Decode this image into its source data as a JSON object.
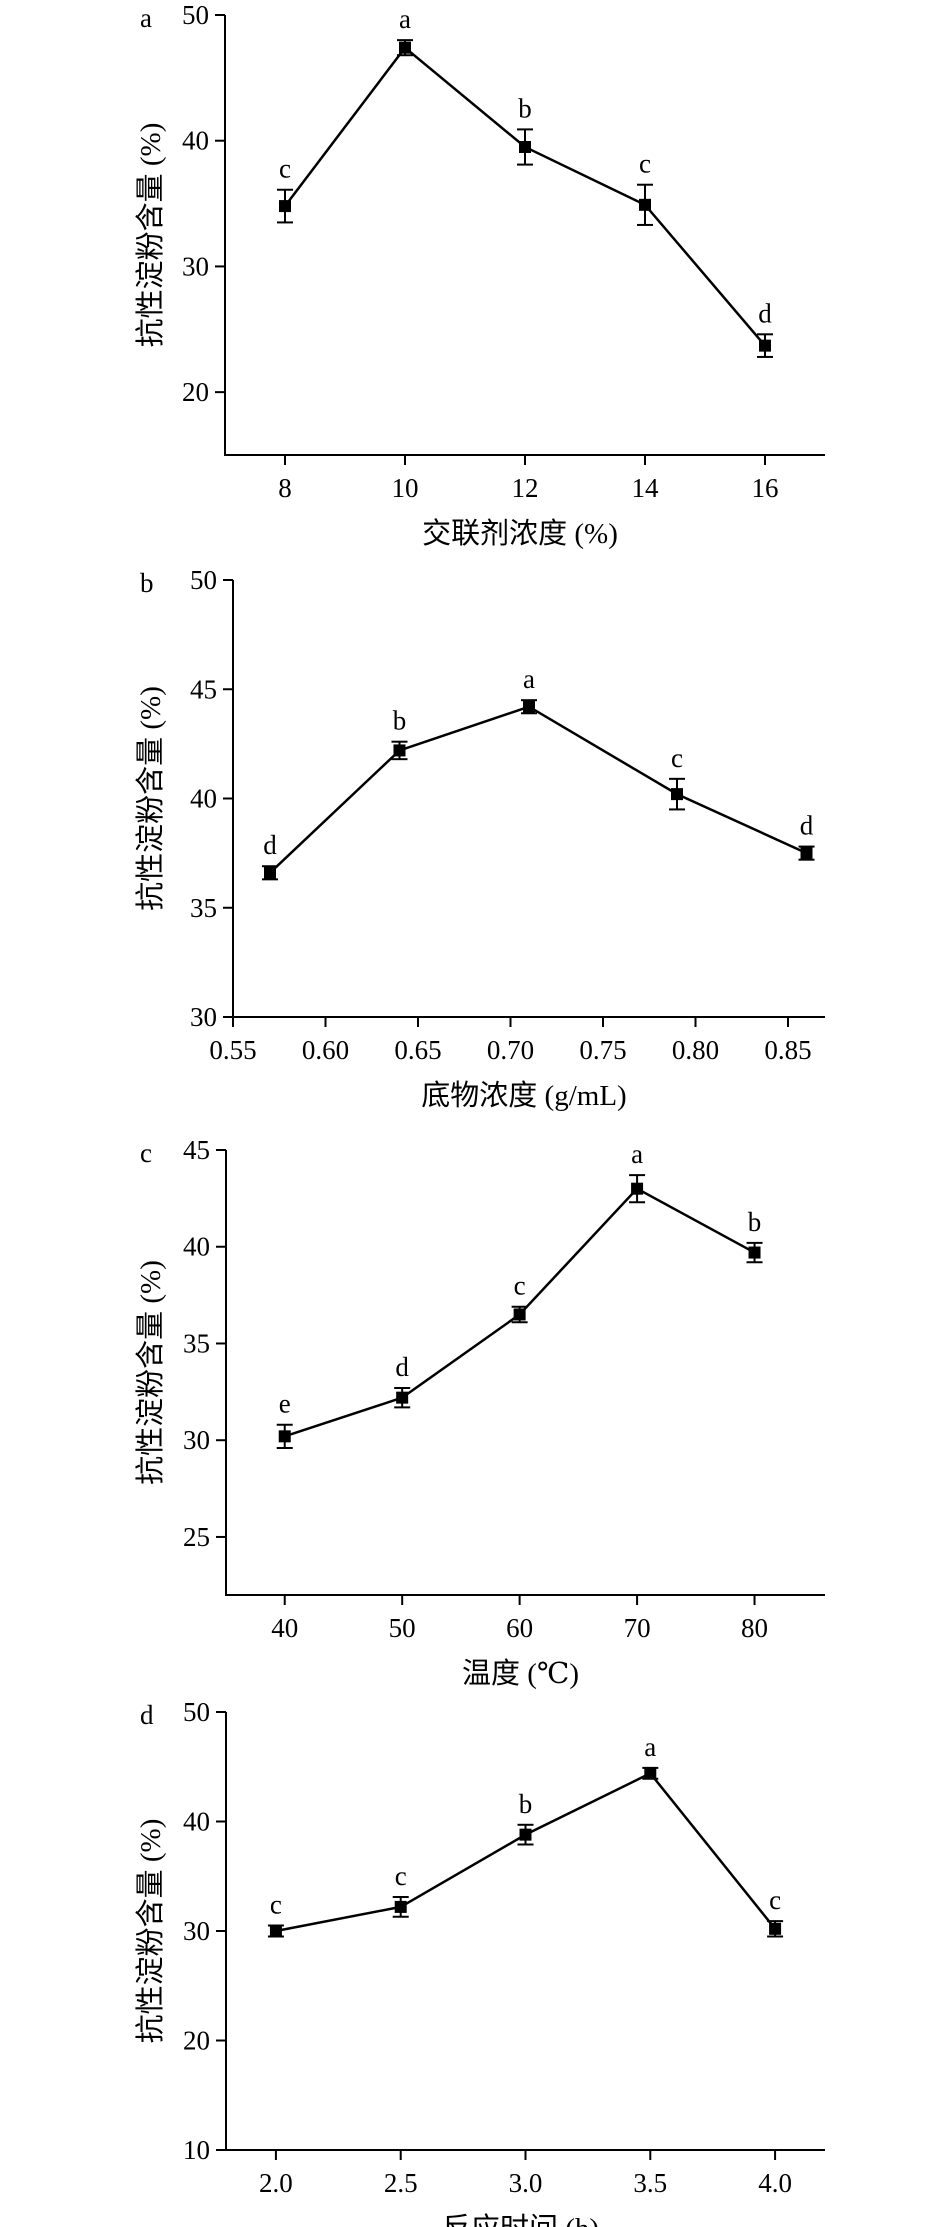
{
  "chart_data": [
    {
      "type": "line",
      "panel_label": "a",
      "xlabel": "交联剂浓度 (%)",
      "ylabel": "抗性淀粉含量 (%)",
      "x": [
        8,
        10,
        12,
        14,
        16
      ],
      "x_ticks": [
        "8",
        "10",
        "12",
        "14",
        "16"
      ],
      "xlim": [
        7.0,
        17.0
      ],
      "y_ticks": [
        "20",
        "30",
        "40",
        "50"
      ],
      "ylim": [
        15,
        50
      ],
      "series": [
        {
          "values": [
            34.8,
            47.4,
            39.5,
            34.9,
            23.7
          ],
          "errors": [
            1.3,
            0.6,
            1.4,
            1.6,
            0.9
          ],
          "letters": [
            "c",
            "a",
            "b",
            "c",
            "d"
          ]
        }
      ],
      "grid": false
    },
    {
      "type": "line",
      "panel_label": "b",
      "xlabel": "底物浓度 (g/mL)",
      "ylabel": "抗性淀粉含量 (%)",
      "x": [
        0.57,
        0.64,
        0.71,
        0.79,
        0.86
      ],
      "x_ticks": [
        "0.55",
        "0.60",
        "0.65",
        "0.70",
        "0.75",
        "0.80",
        "0.85"
      ],
      "xlim": [
        0.55,
        0.87
      ],
      "y_ticks": [
        "30",
        "35",
        "40",
        "45",
        "50"
      ],
      "ylim": [
        30,
        50
      ],
      "series": [
        {
          "values": [
            36.6,
            42.2,
            44.2,
            40.2,
            37.5
          ],
          "errors": [
            0.3,
            0.4,
            0.3,
            0.7,
            0.3
          ],
          "letters": [
            "d",
            "b",
            "a",
            "c",
            "d"
          ]
        }
      ],
      "grid": false
    },
    {
      "type": "line",
      "panel_label": "c",
      "xlabel": "温度 (℃)",
      "ylabel": "抗性淀粉含量 (%)",
      "x": [
        40,
        50,
        60,
        70,
        80
      ],
      "x_ticks": [
        "40",
        "50",
        "60",
        "70",
        "80"
      ],
      "xlim": [
        35,
        86
      ],
      "y_ticks": [
        "25",
        "30",
        "35",
        "40",
        "45"
      ],
      "ylim": [
        22,
        45
      ],
      "series": [
        {
          "values": [
            30.2,
            32.2,
            36.5,
            43.0,
            39.7
          ],
          "errors": [
            0.6,
            0.5,
            0.4,
            0.7,
            0.5
          ],
          "letters": [
            "e",
            "d",
            "c",
            "a",
            "b"
          ]
        }
      ],
      "grid": false
    },
    {
      "type": "line",
      "panel_label": "d",
      "xlabel": "反应时间 (h)",
      "ylabel": "抗性淀粉含量 (%)",
      "x": [
        2.0,
        2.5,
        3.0,
        3.5,
        4.0
      ],
      "x_ticks": [
        "2.0",
        "2.5",
        "3.0",
        "3.5",
        "4.0"
      ],
      "xlim": [
        1.8,
        4.2
      ],
      "y_ticks": [
        "10",
        "20",
        "30",
        "40",
        "50"
      ],
      "ylim": [
        10,
        50
      ],
      "series": [
        {
          "values": [
            30.0,
            32.2,
            38.8,
            44.4,
            30.2
          ],
          "errors": [
            0.5,
            0.9,
            0.9,
            0.5,
            0.7
          ],
          "letters": [
            "c",
            "c",
            "b",
            "a",
            "c"
          ]
        }
      ],
      "grid": false
    }
  ]
}
